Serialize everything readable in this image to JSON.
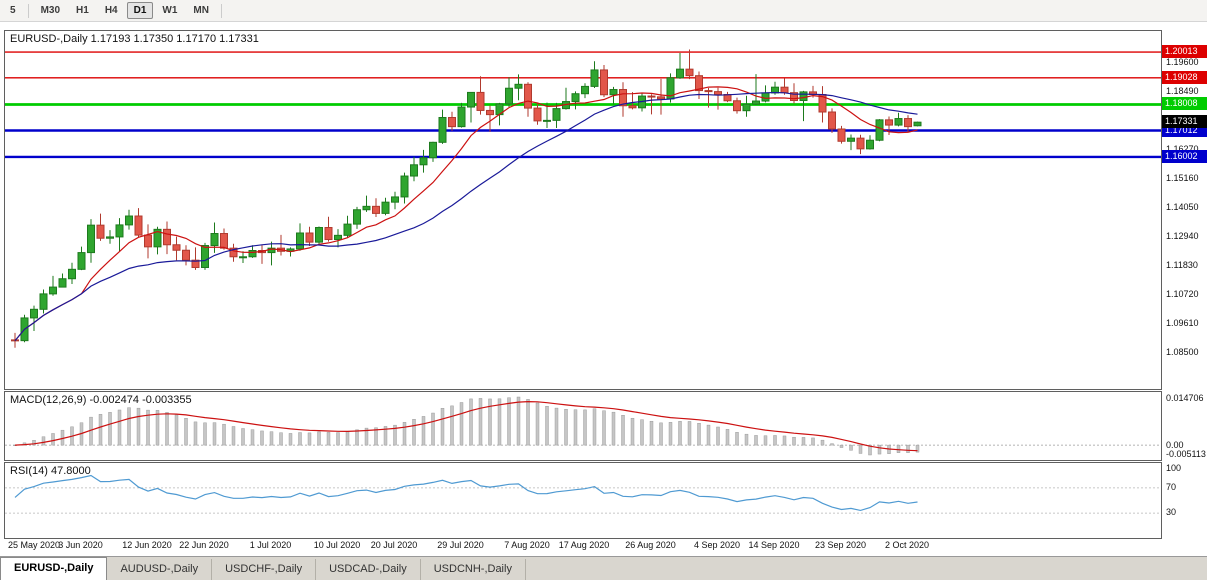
{
  "toolbar": {
    "items": [
      {
        "label": "5",
        "active": false
      },
      {
        "label": "M30",
        "active": false
      },
      {
        "label": "H1",
        "active": false
      },
      {
        "label": "H4",
        "active": false
      },
      {
        "label": "D1",
        "active": true
      },
      {
        "label": "W1",
        "active": false
      },
      {
        "label": "MN",
        "active": false
      }
    ]
  },
  "tabs": {
    "items": [
      {
        "label": "EURUSD-,Daily",
        "active": true
      },
      {
        "label": "AUDUSD-,Daily",
        "active": false
      },
      {
        "label": "USDCHF-,Daily",
        "active": false
      },
      {
        "label": "USDCAD-,Daily",
        "active": false
      },
      {
        "label": "USDCNH-,Daily",
        "active": false
      }
    ]
  },
  "chart_data": {
    "type": "candlestick",
    "symbol": "EURUSD-",
    "timeframe": "Daily",
    "title": "EURUSD-,Daily  1.17193 1.17350 1.17170 1.17331",
    "ohlc_display": {
      "open": "1.17193",
      "high": "1.17350",
      "low": "1.17170",
      "close": "1.17331"
    },
    "price_range": [
      1.0712,
      1.2082
    ],
    "y_axis_labels": [
      "1.19600",
      "1.18490",
      "1.17380",
      "1.16270",
      "1.15160",
      "1.14050",
      "1.12940",
      "1.11830",
      "1.10720",
      "1.09610",
      "1.08500"
    ],
    "x_ticks": [
      {
        "i": 0,
        "label": "25 May 2020"
      },
      {
        "i": 7,
        "label": "3 Jun 2020"
      },
      {
        "i": 14,
        "label": "12 Jun 2020"
      },
      {
        "i": 20,
        "label": "22 Jun 2020"
      },
      {
        "i": 27,
        "label": "1 Jul 2020"
      },
      {
        "i": 34,
        "label": "10 Jul 2020"
      },
      {
        "i": 40,
        "label": "20 Jul 2020"
      },
      {
        "i": 47,
        "label": "29 Jul 2020"
      },
      {
        "i": 54,
        "label": "7 Aug 2020"
      },
      {
        "i": 60,
        "label": "17 Aug 2020"
      },
      {
        "i": 67,
        "label": "26 Aug 2020"
      },
      {
        "i": 74,
        "label": "4 Sep 2020"
      },
      {
        "i": 80,
        "label": "14 Sep 2020"
      },
      {
        "i": 87,
        "label": "23 Sep 2020"
      },
      {
        "i": 94,
        "label": "2 Oct 2020"
      }
    ],
    "colors": {
      "bull_fill": "#2fa52f",
      "bull_stroke": "#1d7a1d",
      "bear_fill": "#e2574a",
      "bear_stroke": "#b03a2e"
    },
    "moving_averages": [
      {
        "name": "fast-ma",
        "period": 8,
        "color": "#cc1111"
      },
      {
        "name": "slow-ma",
        "period": 21,
        "color": "#1a1a99"
      }
    ],
    "levels": [
      {
        "price": 1.20013,
        "label": "1.20013",
        "color": "#dd0000",
        "width": 1.4
      },
      {
        "price": 1.19028,
        "label": "1.19028",
        "color": "#dd0000",
        "width": 1.4
      },
      {
        "price": 1.18008,
        "label": "1.18008",
        "color": "#00cc00",
        "width": 2.8
      },
      {
        "price": 1.17012,
        "label": "1.17012",
        "color": "#0000cc",
        "width": 2.4
      },
      {
        "price": 1.16002,
        "label": "1.16002",
        "color": "#0000cc",
        "width": 2.4
      }
    ],
    "current_price": {
      "value": 1.17331,
      "label": "1.17331",
      "bg": "#000000"
    },
    "indicators": {
      "macd": {
        "label": "MACD(12,26,9) -0.002474 -0.003355",
        "params": [
          12,
          26,
          9
        ],
        "main_value": "-0.002474",
        "signal_value": "-0.003355",
        "axis_labels": {
          "top": "0.014706",
          "zero": "0.00",
          "bottom": "-0.005113"
        },
        "histogram_color": "#c6c6c6",
        "histogram_stroke": "#909090",
        "signal_color": "#cc1111"
      },
      "rsi": {
        "label": "RSI(14) 47.8000",
        "period": 14,
        "value": "47.8000",
        "levels": [
          30,
          70
        ],
        "axis_labels": {
          "top": "100",
          "upper": "70",
          "lower": "30"
        },
        "line_color": "#4f9ad2"
      }
    },
    "candles_ohlc": [
      [
        1.09,
        1.0927,
        1.087,
        1.0897
      ],
      [
        1.0897,
        1.0996,
        1.0891,
        1.0984
      ],
      [
        1.0984,
        1.1031,
        1.0934,
        1.1017
      ],
      [
        1.1017,
        1.1093,
        1.1001,
        1.1076
      ],
      [
        1.1076,
        1.1145,
        1.1069,
        1.1102
      ],
      [
        1.1102,
        1.1154,
        1.1101,
        1.1134
      ],
      [
        1.1134,
        1.1195,
        1.1114,
        1.117
      ],
      [
        1.117,
        1.1257,
        1.1167,
        1.1234
      ],
      [
        1.1234,
        1.1362,
        1.1195,
        1.1339
      ],
      [
        1.1339,
        1.1383,
        1.1279,
        1.1289
      ],
      [
        1.1289,
        1.132,
        1.1268,
        1.1294
      ],
      [
        1.1294,
        1.1366,
        1.124,
        1.134
      ],
      [
        1.134,
        1.1398,
        1.1322,
        1.1374
      ],
      [
        1.1374,
        1.1404,
        1.1293,
        1.1301
      ],
      [
        1.1301,
        1.1342,
        1.1212,
        1.1256
      ],
      [
        1.1256,
        1.1333,
        1.1227,
        1.1323
      ],
      [
        1.1323,
        1.1353,
        1.1228,
        1.1264
      ],
      [
        1.1264,
        1.1295,
        1.1204,
        1.1243
      ],
      [
        1.1243,
        1.1262,
        1.1185,
        1.1205
      ],
      [
        1.1205,
        1.1254,
        1.1168,
        1.1177
      ],
      [
        1.1177,
        1.1271,
        1.1168,
        1.1261
      ],
      [
        1.1261,
        1.1349,
        1.1233,
        1.1307
      ],
      [
        1.1307,
        1.1326,
        1.1245,
        1.1251
      ],
      [
        1.1251,
        1.1268,
        1.1199,
        1.1218
      ],
      [
        1.1218,
        1.1239,
        1.1194,
        1.1218
      ],
      [
        1.1218,
        1.1262,
        1.1214,
        1.1242
      ],
      [
        1.1242,
        1.1262,
        1.1191,
        1.1234
      ],
      [
        1.1234,
        1.1276,
        1.1185,
        1.1251
      ],
      [
        1.1251,
        1.1302,
        1.1223,
        1.1239
      ],
      [
        1.1239,
        1.1254,
        1.1219,
        1.1248
      ],
      [
        1.1248,
        1.1346,
        1.1241,
        1.1309
      ],
      [
        1.1309,
        1.1333,
        1.1259,
        1.1274
      ],
      [
        1.1274,
        1.1334,
        1.1265,
        1.133
      ],
      [
        1.133,
        1.1371,
        1.1276,
        1.1284
      ],
      [
        1.1284,
        1.1324,
        1.1254,
        1.13
      ],
      [
        1.13,
        1.1375,
        1.1292,
        1.1343
      ],
      [
        1.1343,
        1.1409,
        1.1325,
        1.1398
      ],
      [
        1.1398,
        1.1452,
        1.139,
        1.1411
      ],
      [
        1.1411,
        1.1442,
        1.137,
        1.1384
      ],
      [
        1.1384,
        1.1444,
        1.1377,
        1.1427
      ],
      [
        1.1427,
        1.1467,
        1.14,
        1.1447
      ],
      [
        1.1447,
        1.154,
        1.1422,
        1.1527
      ],
      [
        1.1527,
        1.1601,
        1.1507,
        1.157
      ],
      [
        1.157,
        1.1627,
        1.154,
        1.1597
      ],
      [
        1.1597,
        1.1658,
        1.1581,
        1.1656
      ],
      [
        1.1656,
        1.1781,
        1.165,
        1.1751
      ],
      [
        1.1751,
        1.1773,
        1.17,
        1.1716
      ],
      [
        1.1716,
        1.1807,
        1.1712,
        1.1791
      ],
      [
        1.1791,
        1.1848,
        1.1732,
        1.1847
      ],
      [
        1.1847,
        1.1909,
        1.1762,
        1.1778
      ],
      [
        1.1778,
        1.1797,
        1.1696,
        1.1762
      ],
      [
        1.1762,
        1.1807,
        1.1721,
        1.1803
      ],
      [
        1.1803,
        1.1905,
        1.1791,
        1.1863
      ],
      [
        1.1863,
        1.1916,
        1.1817,
        1.1878
      ],
      [
        1.1878,
        1.1886,
        1.1754,
        1.1787
      ],
      [
        1.1787,
        1.1804,
        1.1723,
        1.1738
      ],
      [
        1.1738,
        1.1808,
        1.1711,
        1.174
      ],
      [
        1.174,
        1.1807,
        1.1711,
        1.1785
      ],
      [
        1.1785,
        1.1865,
        1.1781,
        1.1812
      ],
      [
        1.1812,
        1.1851,
        1.1782,
        1.1842
      ],
      [
        1.1842,
        1.1882,
        1.1825,
        1.187
      ],
      [
        1.187,
        1.1966,
        1.1864,
        1.1933
      ],
      [
        1.1933,
        1.1952,
        1.1829,
        1.1838
      ],
      [
        1.1838,
        1.1868,
        1.1801,
        1.1858
      ],
      [
        1.1858,
        1.1886,
        1.1754,
        1.1796
      ],
      [
        1.1796,
        1.1848,
        1.1782,
        1.1788
      ],
      [
        1.1788,
        1.1843,
        1.1774,
        1.1833
      ],
      [
        1.1833,
        1.184,
        1.1763,
        1.183
      ],
      [
        1.183,
        1.1899,
        1.1762,
        1.1822
      ],
      [
        1.1822,
        1.192,
        1.1808,
        1.1903
      ],
      [
        1.1903,
        1.1998,
        1.1899,
        1.1936
      ],
      [
        1.1936,
        1.2011,
        1.1898,
        1.1911
      ],
      [
        1.1911,
        1.1927,
        1.1822,
        1.1854
      ],
      [
        1.1854,
        1.1864,
        1.1789,
        1.185
      ],
      [
        1.185,
        1.1865,
        1.1781,
        1.1839
      ],
      [
        1.1839,
        1.1849,
        1.181,
        1.1815
      ],
      [
        1.1815,
        1.1827,
        1.1766,
        1.1777
      ],
      [
        1.1777,
        1.1834,
        1.1754,
        1.1802
      ],
      [
        1.1802,
        1.1917,
        1.1799,
        1.1814
      ],
      [
        1.1814,
        1.1874,
        1.1809,
        1.1845
      ],
      [
        1.1845,
        1.1888,
        1.1838,
        1.1867
      ],
      [
        1.1867,
        1.1901,
        1.1838,
        1.1846
      ],
      [
        1.1846,
        1.1882,
        1.1805,
        1.1816
      ],
      [
        1.1816,
        1.1853,
        1.1737,
        1.1849
      ],
      [
        1.1849,
        1.1872,
        1.1827,
        1.1839
      ],
      [
        1.1839,
        1.1871,
        1.1732,
        1.1772
      ],
      [
        1.1772,
        1.1786,
        1.1692,
        1.1707
      ],
      [
        1.1707,
        1.1719,
        1.1651,
        1.166
      ],
      [
        1.166,
        1.1686,
        1.1626,
        1.1672
      ],
      [
        1.1672,
        1.1685,
        1.1611,
        1.1631
      ],
      [
        1.1631,
        1.1683,
        1.1628,
        1.1664
      ],
      [
        1.1664,
        1.1745,
        1.166,
        1.1742
      ],
      [
        1.1742,
        1.1755,
        1.1684,
        1.1722
      ],
      [
        1.1722,
        1.1769,
        1.1717,
        1.1747
      ],
      [
        1.1747,
        1.176,
        1.1695,
        1.1716
      ],
      [
        1.17193,
        1.1735,
        1.1717,
        1.17331
      ]
    ]
  }
}
